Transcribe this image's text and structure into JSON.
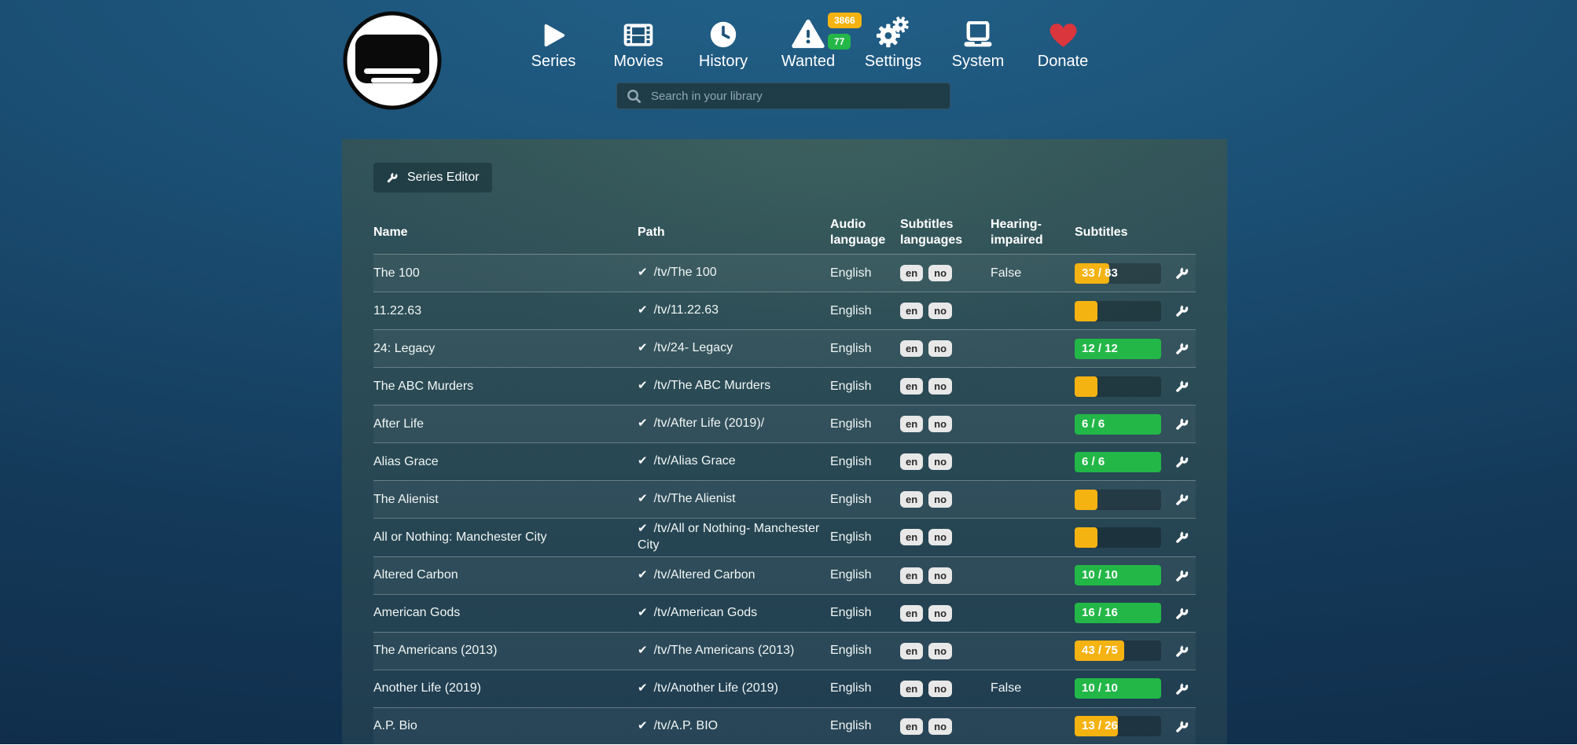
{
  "nav": {
    "items": [
      {
        "label": "Series",
        "icon": "play-icon"
      },
      {
        "label": "Movies",
        "icon": "film-icon"
      },
      {
        "label": "History",
        "icon": "clock-icon"
      },
      {
        "label": "Wanted",
        "icon": "warning-icon",
        "badges": [
          {
            "text": "3866",
            "status": "warning"
          },
          {
            "text": "77",
            "status": "success"
          }
        ]
      },
      {
        "label": "Settings",
        "icon": "gears-icon"
      },
      {
        "label": "System",
        "icon": "laptop-icon"
      },
      {
        "label": "Donate",
        "icon": "heart-icon"
      }
    ]
  },
  "search": {
    "placeholder": "Search in your library"
  },
  "toolbar": {
    "series_editor_label": "Series Editor"
  },
  "table": {
    "headers": {
      "name": "Name",
      "path": "Path",
      "audio": "Audio language",
      "subs_langs": "Subtitles languages",
      "hi": "Hearing-impaired",
      "subtitles": "Subtitles"
    },
    "rows": [
      {
        "name": "The 100",
        "path": "/tv/The 100",
        "audio": "English",
        "languages": [
          "en",
          "no"
        ],
        "hearing_impaired": "False",
        "subtitles": {
          "label": "33 / 83",
          "percent": 40,
          "status": "warning"
        }
      },
      {
        "name": "11.22.63",
        "path": "/tv/11.22.63",
        "audio": "English",
        "languages": [
          "en",
          "no"
        ],
        "hearing_impaired": "",
        "subtitles": {
          "label": "",
          "percent": 26,
          "status": "warning"
        }
      },
      {
        "name": "24: Legacy",
        "path": "/tv/24- Legacy",
        "audio": "English",
        "languages": [
          "en",
          "no"
        ],
        "hearing_impaired": "",
        "subtitles": {
          "label": "12 / 12",
          "percent": 100,
          "status": "success"
        }
      },
      {
        "name": "The ABC Murders",
        "path": "/tv/The ABC Murders",
        "audio": "English",
        "languages": [
          "en",
          "no"
        ],
        "hearing_impaired": "",
        "subtitles": {
          "label": "",
          "percent": 26,
          "status": "warning"
        }
      },
      {
        "name": "After Life",
        "path": "/tv/After Life (2019)/",
        "audio": "English",
        "languages": [
          "en",
          "no"
        ],
        "hearing_impaired": "",
        "subtitles": {
          "label": "6 / 6",
          "percent": 100,
          "status": "success"
        }
      },
      {
        "name": "Alias Grace",
        "path": "/tv/Alias Grace",
        "audio": "English",
        "languages": [
          "en",
          "no"
        ],
        "hearing_impaired": "",
        "subtitles": {
          "label": "6 / 6",
          "percent": 100,
          "status": "success"
        }
      },
      {
        "name": "The Alienist",
        "path": "/tv/The Alienist",
        "audio": "English",
        "languages": [
          "en",
          "no"
        ],
        "hearing_impaired": "",
        "subtitles": {
          "label": "",
          "percent": 26,
          "status": "warning"
        }
      },
      {
        "name": "All or Nothing: Manchester City",
        "path": "/tv/All or Nothing- Manchester City",
        "audio": "English",
        "languages": [
          "en",
          "no"
        ],
        "hearing_impaired": "",
        "subtitles": {
          "label": "",
          "percent": 26,
          "status": "warning"
        }
      },
      {
        "name": "Altered Carbon",
        "path": "/tv/Altered Carbon",
        "audio": "English",
        "languages": [
          "en",
          "no"
        ],
        "hearing_impaired": "",
        "subtitles": {
          "label": "10 / 10",
          "percent": 100,
          "status": "success"
        }
      },
      {
        "name": "American Gods",
        "path": "/tv/American Gods",
        "audio": "English",
        "languages": [
          "en",
          "no"
        ],
        "hearing_impaired": "",
        "subtitles": {
          "label": "16 / 16",
          "percent": 100,
          "status": "success"
        }
      },
      {
        "name": "The Americans (2013)",
        "path": "/tv/The Americans (2013)",
        "audio": "English",
        "languages": [
          "en",
          "no"
        ],
        "hearing_impaired": "",
        "subtitles": {
          "label": "43 / 75",
          "percent": 57,
          "status": "warning"
        }
      },
      {
        "name": "Another Life (2019)",
        "path": "/tv/Another Life (2019)",
        "audio": "English",
        "languages": [
          "en",
          "no"
        ],
        "hearing_impaired": "False",
        "subtitles": {
          "label": "10 / 10",
          "percent": 100,
          "status": "success"
        }
      },
      {
        "name": "A.P. Bio",
        "path": "/tv/A.P. BIO",
        "audio": "English",
        "languages": [
          "en",
          "no"
        ],
        "hearing_impaired": "",
        "subtitles": {
          "label": "13 / 26",
          "percent": 50,
          "status": "warning"
        }
      }
    ]
  },
  "colors": {
    "warning": "#f5b312",
    "success": "#23b748",
    "heart": "#d9363e",
    "language_badge_bg": "#e8e8e8"
  }
}
